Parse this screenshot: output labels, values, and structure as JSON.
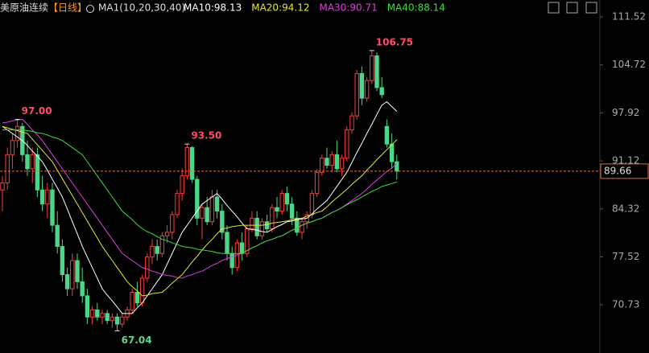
{
  "chart_data": {
    "type": "candlestick",
    "title": "美原油连续",
    "period": "【日线】",
    "indicator": "MA1(10,20,30,40)",
    "ma_labels": [
      "MA10:98.13",
      "MA20:94.12",
      "MA30:90.71",
      "MA40:88.14"
    ],
    "ylim": [
      63.9,
      111.52
    ],
    "yticks": [
      111.52,
      104.72,
      97.92,
      91.12,
      84.32,
      77.52,
      70.73
    ],
    "last_price": 89.66,
    "up_color": "#ff3c3c",
    "down_color": "#4cd68a",
    "annotations": [
      {
        "value": 97,
        "label": "97.00",
        "kind": "high"
      },
      {
        "value": 93.5,
        "label": "93.50",
        "kind": "high"
      },
      {
        "value": 106.75,
        "label": "106.75",
        "kind": "high"
      },
      {
        "value": 67.04,
        "label": "67.04",
        "kind": "low"
      }
    ],
    "candles": [
      [
        87,
        89,
        84,
        88
      ],
      [
        88,
        93,
        87,
        92
      ],
      [
        92,
        95,
        90,
        94
      ],
      [
        94,
        97,
        93,
        96
      ],
      [
        96,
        96.5,
        91,
        92
      ],
      [
        92,
        94,
        89,
        90
      ],
      [
        90,
        93,
        88,
        92
      ],
      [
        92,
        93,
        86,
        87
      ],
      [
        87,
        89,
        84,
        85
      ],
      [
        85,
        88,
        83,
        87
      ],
      [
        87,
        88,
        81,
        82
      ],
      [
        82,
        84,
        78,
        79
      ],
      [
        79,
        80,
        74,
        75
      ],
      [
        75,
        76,
        72,
        73
      ],
      [
        73,
        78,
        72,
        77
      ],
      [
        77,
        78,
        73,
        74
      ],
      [
        74,
        76,
        71,
        72
      ],
      [
        72,
        73,
        68,
        69
      ],
      [
        69,
        70.5,
        68,
        70
      ],
      [
        70,
        71,
        68.5,
        69
      ],
      [
        69,
        70,
        68,
        69.5
      ],
      [
        69.5,
        70,
        68,
        68.5
      ],
      [
        68.5,
        69.5,
        67.5,
        69
      ],
      [
        69,
        69.5,
        67.04,
        68
      ],
      [
        68,
        69.5,
        67.5,
        69
      ],
      [
        69,
        70.5,
        68.5,
        70
      ],
      [
        70,
        73,
        69.5,
        72.5
      ],
      [
        72.5,
        74,
        70.5,
        71
      ],
      [
        71,
        75,
        70.5,
        74.5
      ],
      [
        74.5,
        78,
        74,
        77.5
      ],
      [
        77.5,
        80,
        76.5,
        79
      ],
      [
        79,
        80,
        77,
        78
      ],
      [
        78,
        81,
        77.5,
        80.5
      ],
      [
        80.5,
        82,
        79.5,
        81
      ],
      [
        81,
        84,
        80,
        83.5
      ],
      [
        83.5,
        87,
        83,
        86.5
      ],
      [
        86.5,
        90,
        85.5,
        89
      ],
      [
        89,
        93.5,
        88.5,
        93
      ],
      [
        93,
        93.2,
        88,
        88.5
      ],
      [
        88.5,
        89,
        82,
        83
      ],
      [
        83,
        85,
        80,
        84.5
      ],
      [
        84.5,
        86,
        82,
        82.5
      ],
      [
        82.5,
        87,
        82,
        86
      ],
      [
        86,
        87,
        83,
        84
      ],
      [
        84,
        85,
        80,
        81
      ],
      [
        81,
        82,
        77,
        78
      ],
      [
        78,
        79,
        75,
        76
      ],
      [
        76,
        80,
        75.5,
        79.5
      ],
      [
        79.5,
        81,
        77,
        78
      ],
      [
        78,
        82,
        77.5,
        81.5
      ],
      [
        81.5,
        84,
        81,
        83
      ],
      [
        83,
        84,
        80,
        80.5
      ],
      [
        80.5,
        83,
        80,
        82.5
      ],
      [
        82.5,
        83.5,
        81,
        81.5
      ],
      [
        81.5,
        85,
        81,
        84.5
      ],
      [
        84.5,
        86,
        83,
        84
      ],
      [
        84,
        87,
        83.5,
        86.5
      ],
      [
        86.5,
        87.5,
        84,
        85
      ],
      [
        85,
        86,
        82,
        83
      ],
      [
        83,
        84,
        80.5,
        81
      ],
      [
        81,
        83,
        80,
        82.5
      ],
      [
        82.5,
        84,
        81.5,
        83.5
      ],
      [
        83.5,
        87,
        83,
        86.5
      ],
      [
        86.5,
        90,
        86,
        89.5
      ],
      [
        89.5,
        92,
        89,
        91.5
      ],
      [
        91.5,
        93,
        90,
        90.5
      ],
      [
        90.5,
        92.5,
        89.5,
        92
      ],
      [
        92,
        94,
        89.5,
        90
      ],
      [
        90,
        92,
        89,
        91.5
      ],
      [
        91.5,
        96,
        91,
        95.5
      ],
      [
        95.5,
        98,
        95,
        97.5
      ],
      [
        97.5,
        104,
        97,
        103.5
      ],
      [
        103.5,
        104.5,
        99,
        100
      ],
      [
        100,
        103,
        99.5,
        102.5
      ],
      [
        102.5,
        106.75,
        102,
        106
      ],
      [
        106,
        106.5,
        101,
        101.5
      ],
      [
        101.5,
        103,
        100,
        100.5
      ],
      [
        96,
        97,
        93,
        93.5
      ],
      [
        93.5,
        95,
        90,
        91
      ],
      [
        91,
        92,
        88.5,
        89.66
      ]
    ],
    "series": [
      {
        "name": "MA10",
        "color": "#ffffff",
        "values": [
          96,
          95.5,
          95,
          94.5,
          94,
          93.3,
          92.5,
          91.8,
          91,
          89.8,
          88.5,
          87.3,
          86,
          84.3,
          82.5,
          80.8,
          79,
          77.5,
          76,
          74.5,
          73,
          72.1,
          71.3,
          70.4,
          69.5,
          69.5,
          69.5,
          70.3,
          71,
          72,
          73,
          74,
          75,
          76.5,
          78,
          79.5,
          81,
          82,
          83,
          84,
          85,
          85.5,
          86,
          86.5,
          85.7,
          84.8,
          84,
          83.2,
          82.3,
          81.5,
          81.4,
          81.3,
          81.1,
          81,
          81.4,
          81.8,
          82.1,
          82.5,
          82.6,
          82.8,
          82.9,
          83,
          83.6,
          84.3,
          84.9,
          85.5,
          86.5,
          87.5,
          88.5,
          89.5,
          90.9,
          92.3,
          93.6,
          95,
          96.3,
          97.7,
          99,
          99.5,
          98.8,
          98.13
        ]
      },
      {
        "name": "MA20",
        "color": "#e6e632",
        "values": [
          96,
          95.8,
          95.6,
          95.4,
          95.2,
          95,
          94.2,
          93.4,
          92.6,
          91.8,
          91,
          89.8,
          88.6,
          87.4,
          86.2,
          85,
          83.8,
          82.6,
          81.4,
          80.2,
          79,
          78,
          77,
          76,
          75,
          74,
          73.3,
          72.7,
          72,
          72.1,
          72.3,
          72.4,
          72.5,
          73.1,
          73.8,
          74.4,
          75,
          75.9,
          76.8,
          77.6,
          78.5,
          79.3,
          80,
          80.8,
          81.5,
          81.6,
          81.8,
          81.9,
          82,
          82,
          82,
          82,
          82,
          82.1,
          82.3,
          82.4,
          82.5,
          82.6,
          82.8,
          82.9,
          83,
          83.3,
          83.5,
          83.8,
          84,
          84.6,
          85.3,
          85.9,
          86.5,
          87.1,
          87.8,
          88.4,
          89,
          89.8,
          90.5,
          91.3,
          92,
          92.7,
          93.4,
          94.12
        ]
      },
      {
        "name": "MA30",
        "color": "#e03ce0",
        "values": [
          96.5,
          96.6,
          96.8,
          96.9,
          97,
          96.3,
          95.5,
          94.8,
          94,
          93,
          92,
          91,
          90,
          89,
          88,
          87,
          86,
          85,
          84,
          83,
          82,
          81,
          80,
          79,
          78,
          77.5,
          77,
          76.5,
          76,
          75.8,
          75.5,
          75.3,
          75,
          74.9,
          74.8,
          74.6,
          74.5,
          74.8,
          75,
          75.3,
          75.5,
          75.9,
          76.3,
          76.6,
          77,
          77.3,
          77.5,
          77.8,
          78,
          78.4,
          78.8,
          79.1,
          79.5,
          79.8,
          80,
          80.3,
          80.5,
          80.9,
          81.3,
          81.6,
          82,
          82.3,
          82.5,
          82.8,
          83,
          83.4,
          83.8,
          84.1,
          84.5,
          85,
          85.5,
          86,
          86.5,
          87.1,
          87.8,
          88.4,
          89,
          89.6,
          90.1,
          90.71
        ]
      },
      {
        "name": "MA40",
        "color": "#3cdc3c",
        "values": [
          95.5,
          95.5,
          95.5,
          95.5,
          95.5,
          95.4,
          95.3,
          95.1,
          95,
          94.8,
          94.5,
          94.3,
          94,
          93.5,
          93,
          92.5,
          92,
          91,
          90,
          89,
          88,
          87,
          86,
          85,
          84,
          83.4,
          82.8,
          82.1,
          81.5,
          81.1,
          80.8,
          80.4,
          80,
          79.8,
          79.5,
          79.3,
          79,
          78.9,
          78.8,
          78.6,
          78.5,
          78.4,
          78.3,
          78.1,
          78,
          78,
          78,
          78,
          78,
          78.4,
          78.8,
          79.1,
          79.5,
          79.8,
          80,
          80.3,
          80.5,
          80.9,
          81.3,
          81.6,
          82,
          82.3,
          82.5,
          82.8,
          83,
          83.4,
          83.8,
          84.1,
          84.5,
          84.9,
          85.3,
          85.6,
          86,
          86.4,
          86.8,
          87.1,
          87.5,
          87.7,
          87.9,
          88.14
        ]
      }
    ]
  }
}
